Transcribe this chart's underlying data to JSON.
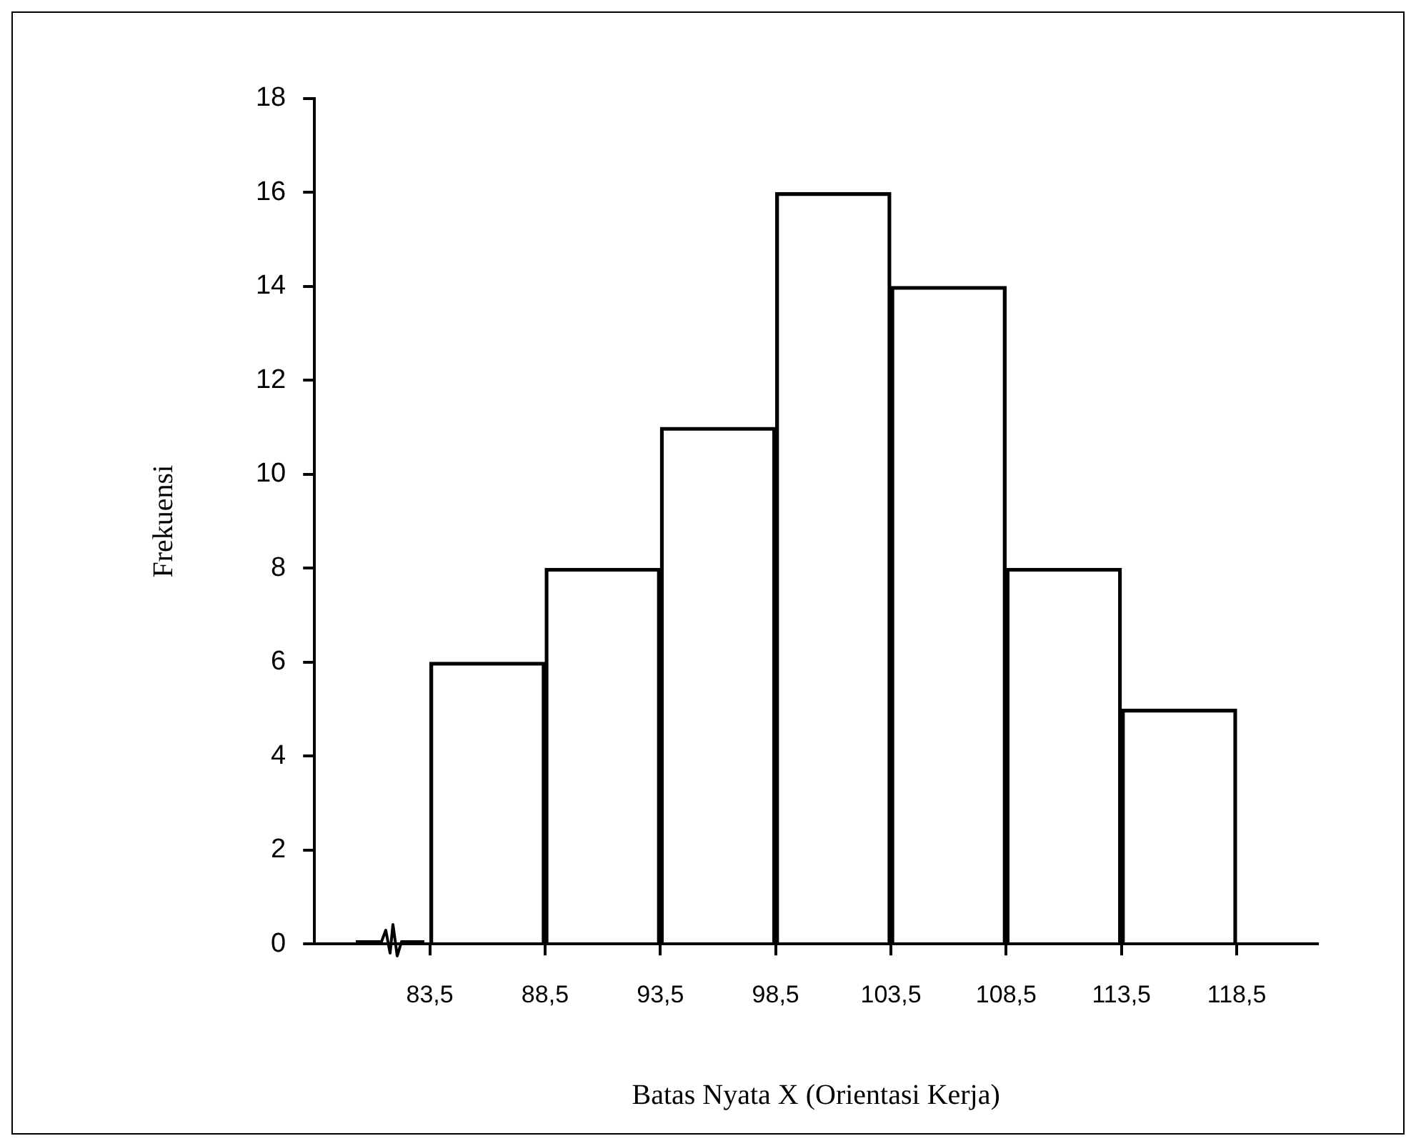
{
  "chart_data": {
    "type": "histogram",
    "xlabel": "Batas Nyata X (Orientasi Kerja)",
    "ylabel": "Frekuensi",
    "bins": [
      83.5,
      88.5,
      93.5,
      98.5,
      103.5,
      108.5,
      113.5,
      118.5
    ],
    "values": [
      6,
      8,
      11,
      16,
      14,
      8,
      5
    ],
    "color": "#000000",
    "xlim": [
      78.5,
      122
    ],
    "xticks": [
      {
        "value": 83.5,
        "label": "83,5"
      },
      {
        "value": 88.5,
        "label": "88,5"
      },
      {
        "value": 93.5,
        "label": "93,5"
      },
      {
        "value": 98.5,
        "label": "98,5"
      },
      {
        "value": 103.5,
        "label": "103,5"
      },
      {
        "value": 108.5,
        "label": "108,5"
      },
      {
        "value": 113.5,
        "label": "113,5"
      },
      {
        "value": 118.5,
        "label": "118,5"
      }
    ],
    "ylim": [
      0,
      18
    ],
    "yticks": [
      0,
      2,
      4,
      6,
      8,
      10,
      12,
      14,
      16,
      18
    ],
    "grid": false,
    "legend": false
  }
}
